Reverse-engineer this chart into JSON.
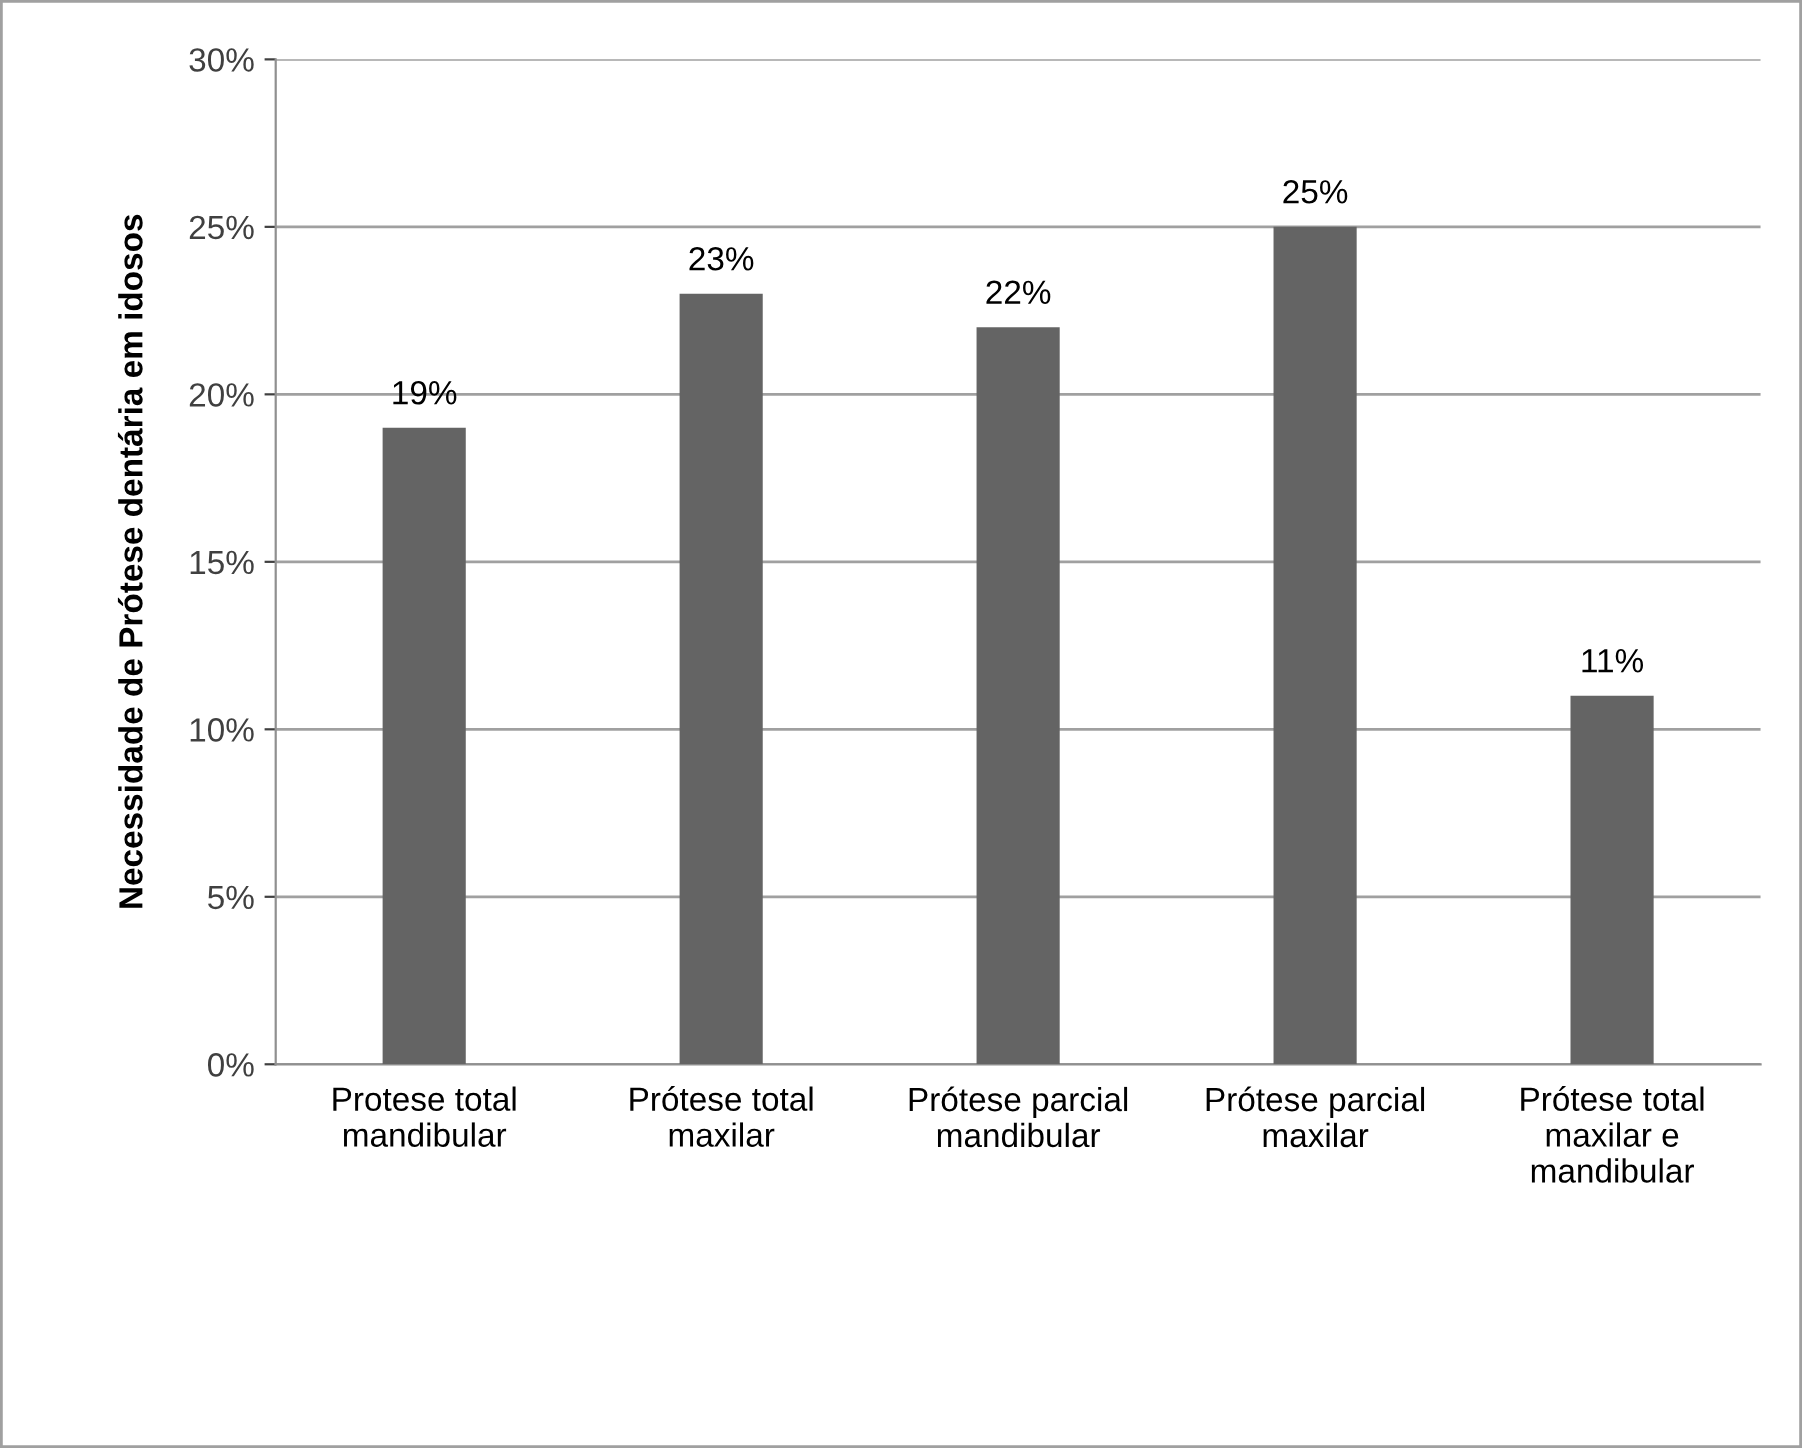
{
  "chart_data": {
    "type": "bar",
    "ylabel": "Necessidade de Prótese dentária em idosos",
    "categories": [
      "Protese total\nmandibular",
      "Prótese total\nmaxilar",
      "Prótese parcial\nmandibular",
      "Prótese parcial\nmaxilar",
      "Prótese total\nmaxilar e\nmandibular"
    ],
    "values": [
      19,
      23,
      22,
      25,
      11
    ],
    "value_labels": [
      "19%",
      "23%",
      "22%",
      "25%",
      "11%"
    ],
    "color": "#646464",
    "ylim": [
      0,
      30
    ],
    "yticks": [
      {
        "value": 0,
        "label": "0%"
      },
      {
        "value": 5,
        "label": "5%"
      },
      {
        "value": 10,
        "label": "10%"
      },
      {
        "value": 15,
        "label": "15%"
      },
      {
        "value": 20,
        "label": "20%"
      },
      {
        "value": 25,
        "label": "25%"
      },
      {
        "value": 30,
        "label": "30%"
      }
    ],
    "grid": "y",
    "legend": false
  }
}
